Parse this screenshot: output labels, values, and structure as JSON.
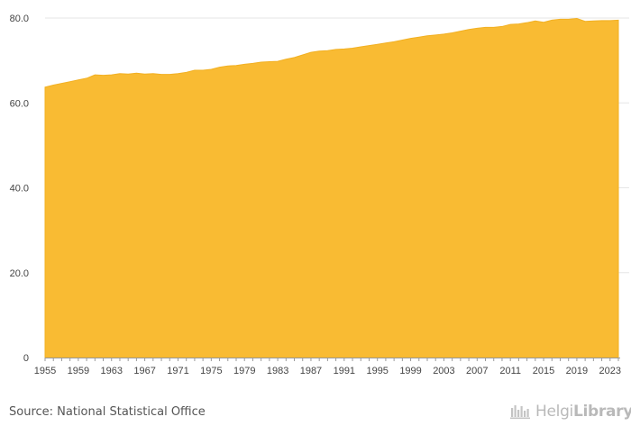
{
  "chart_data": {
    "type": "area",
    "title": "",
    "xlabel": "",
    "ylabel": "",
    "ylim": [
      0,
      80
    ],
    "y_ticks": [
      "0",
      "20.0",
      "40.0",
      "60.0",
      "80.0"
    ],
    "x_ticks": [
      "1955",
      "1959",
      "1963",
      "1967",
      "1971",
      "1975",
      "1979",
      "1983",
      "1987",
      "1991",
      "1995",
      "1999",
      "2003",
      "2007",
      "2011",
      "2015",
      "2019",
      "2023"
    ],
    "grid": "horizontal",
    "colors": {
      "fill": "#f9bb33",
      "stroke": "#f2b022",
      "grid": "#e6e6e6",
      "axis": "#9a9a9a"
    },
    "x": [
      1955,
      1956,
      1957,
      1958,
      1959,
      1960,
      1961,
      1962,
      1963,
      1964,
      1965,
      1966,
      1967,
      1968,
      1969,
      1970,
      1971,
      1972,
      1973,
      1974,
      1975,
      1976,
      1977,
      1978,
      1979,
      1980,
      1981,
      1982,
      1983,
      1984,
      1985,
      1986,
      1987,
      1988,
      1989,
      1990,
      1991,
      1992,
      1993,
      1994,
      1995,
      1996,
      1997,
      1998,
      1999,
      2000,
      2001,
      2002,
      2003,
      2004,
      2005,
      2006,
      2007,
      2008,
      2009,
      2010,
      2011,
      2012,
      2013,
      2014,
      2015,
      2016,
      2017,
      2018,
      2019,
      2020,
      2021,
      2022,
      2023,
      2024
    ],
    "values": [
      63.7,
      64.2,
      64.6,
      65.0,
      65.4,
      65.8,
      66.6,
      66.5,
      66.6,
      66.9,
      66.8,
      67.0,
      66.8,
      66.9,
      66.7,
      66.7,
      66.9,
      67.2,
      67.7,
      67.7,
      67.9,
      68.4,
      68.7,
      68.8,
      69.1,
      69.3,
      69.6,
      69.7,
      69.8,
      70.3,
      70.7,
      71.3,
      71.9,
      72.2,
      72.3,
      72.6,
      72.7,
      72.9,
      73.2,
      73.5,
      73.8,
      74.1,
      74.4,
      74.8,
      75.2,
      75.5,
      75.8,
      76.0,
      76.2,
      76.5,
      76.9,
      77.3,
      77.6,
      77.8,
      77.8,
      78.0,
      78.5,
      78.6,
      78.9,
      79.3,
      79.0,
      79.5,
      79.7,
      79.7,
      79.9,
      79.2,
      79.3,
      79.4,
      79.4,
      79.5
    ]
  },
  "footer": {
    "source": "Source: National Statistical Office",
    "brand_part1": "Helgi",
    "brand_part2": "Library."
  }
}
